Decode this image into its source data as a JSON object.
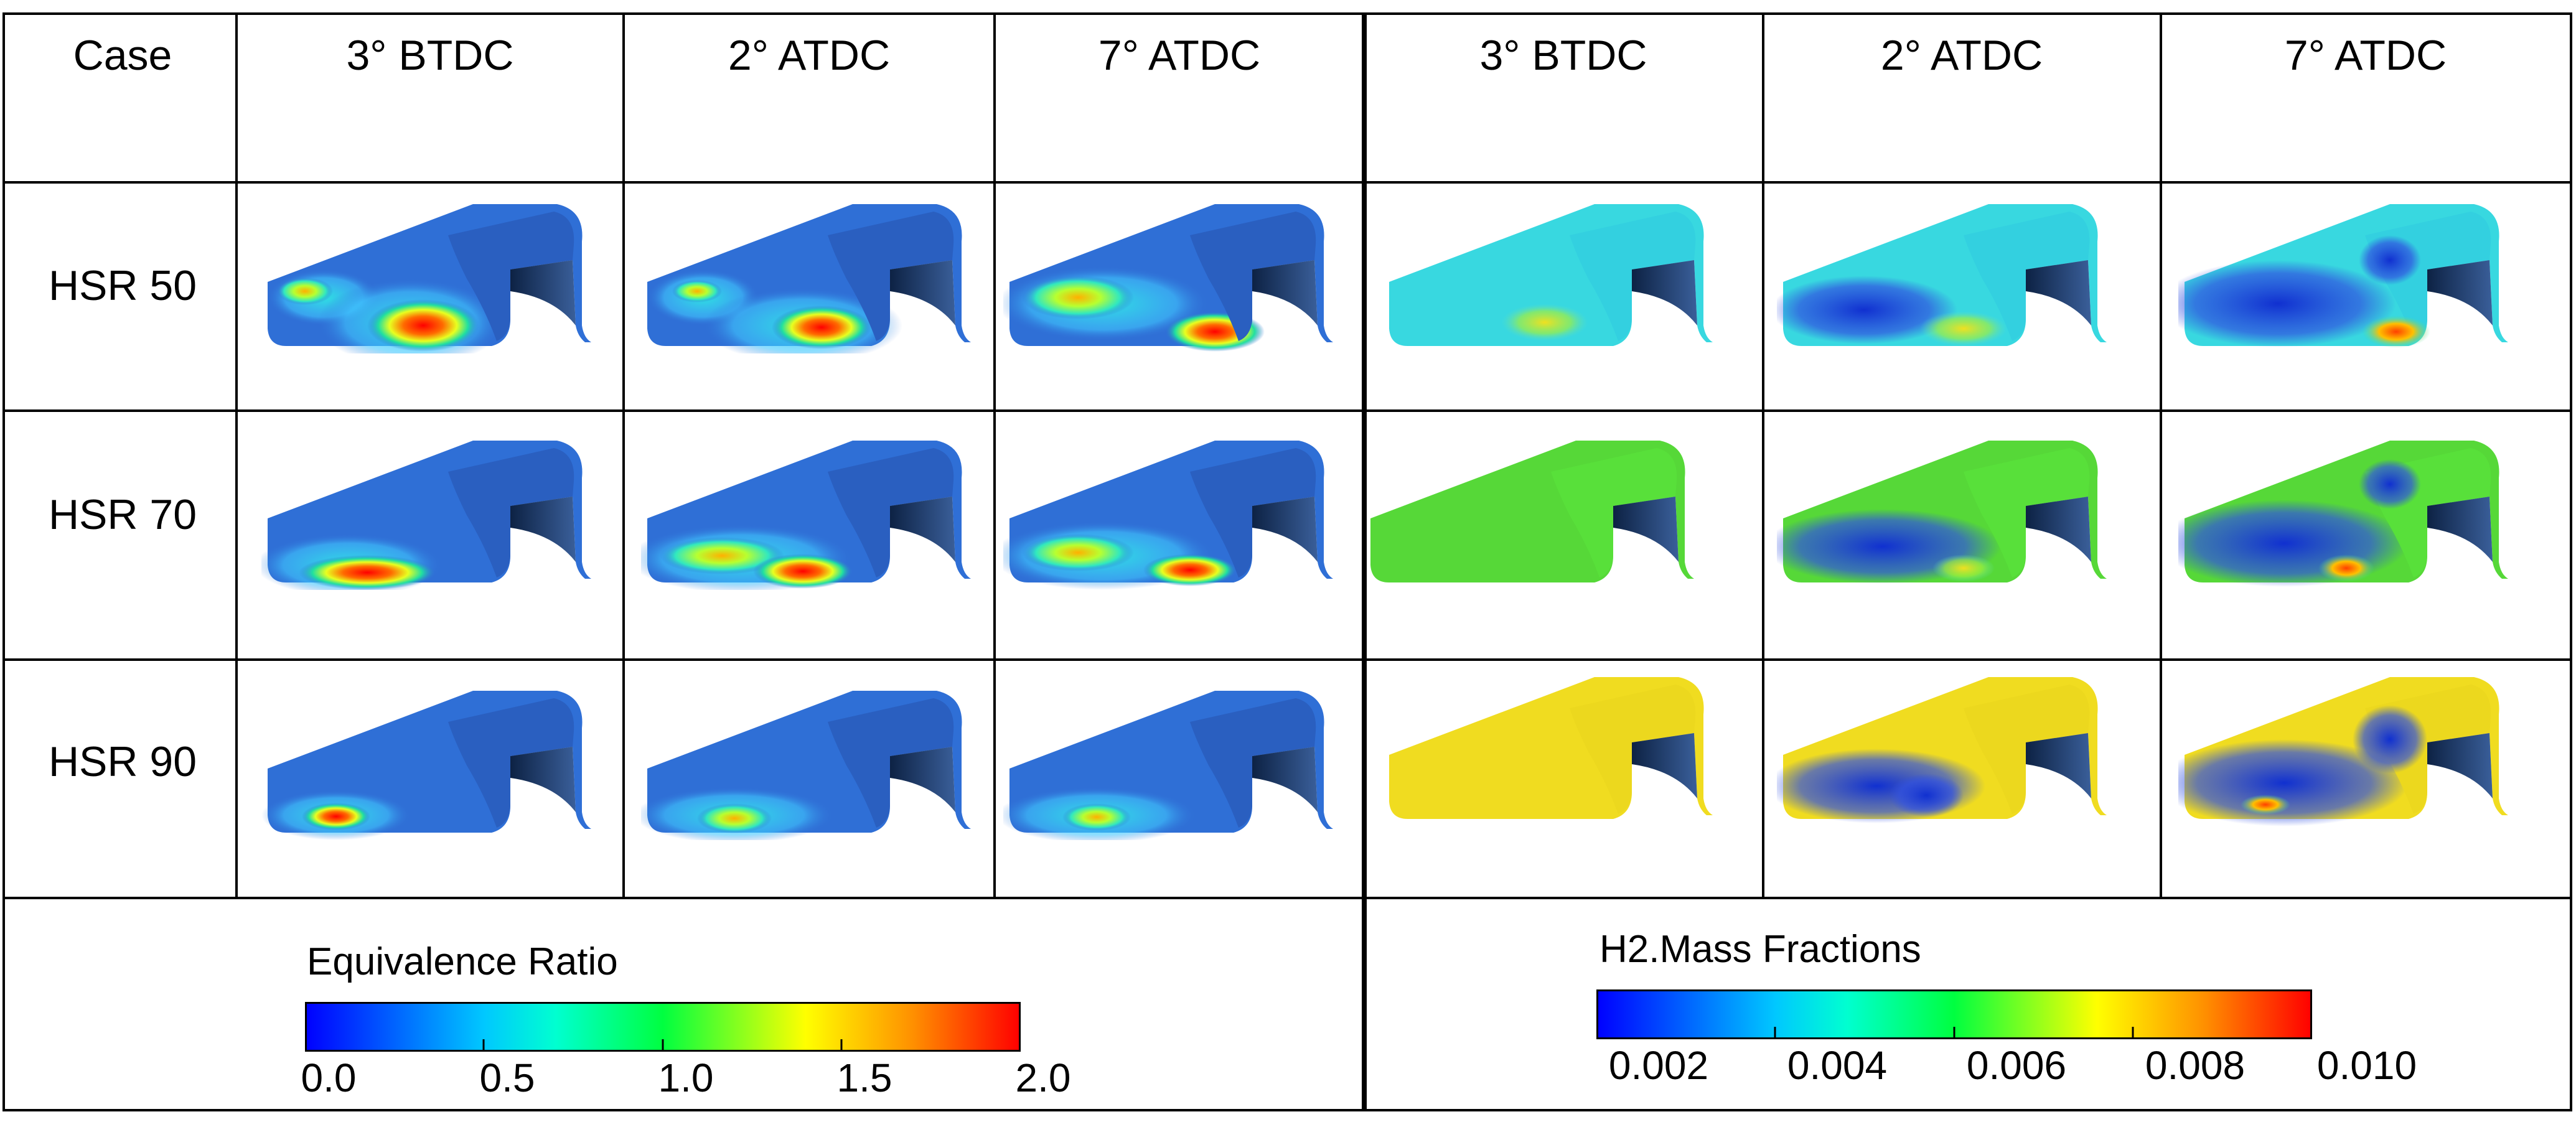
{
  "header": {
    "case_label": "Case",
    "columns": [
      "3° BTDC",
      "2° ATDC",
      "7° ATDC",
      "3° BTDC",
      "2° ATDC",
      "7° ATDC"
    ]
  },
  "rows": [
    {
      "label": "HSR 50"
    },
    {
      "label": "HSR 70"
    },
    {
      "label": "HSR 90"
    }
  ],
  "legends": {
    "equivalence_ratio": {
      "title": "Equivalence Ratio",
      "ticks": [
        "0.0",
        "0.5",
        "1.0",
        "1.5",
        "2.0"
      ]
    },
    "h2_mass_fraction": {
      "title": "H2.Mass Fractions",
      "ticks": [
        "0.002",
        "0.004",
        "0.006",
        "0.008",
        "0.010"
      ]
    }
  },
  "colors": {
    "grid_line": "#000000",
    "piston_base_blue": "#2f6fd6",
    "piston_dark": "#0f2a52"
  }
}
